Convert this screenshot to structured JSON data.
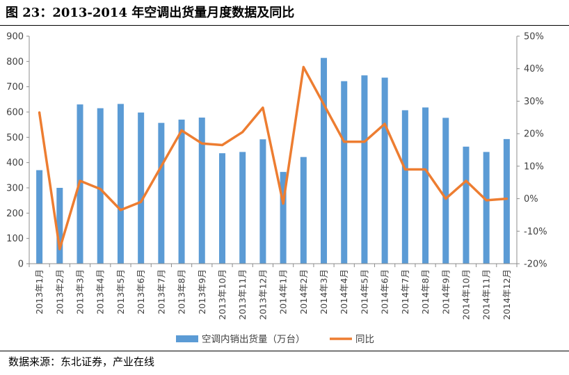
{
  "page": {
    "title": "图 23：2013-2014 年空调出货量月度数据及同比",
    "source": "数据来源：东北证券，产业在线"
  },
  "chart_data": {
    "type": "bar+line",
    "categories": [
      "2013年1月",
      "2013年2月",
      "2013年3月",
      "2013年4月",
      "2013年5月",
      "2013年6月",
      "2013年7月",
      "2013年8月",
      "2013年9月",
      "2013年10月",
      "2013年11月",
      "2013年12月",
      "2014年1月",
      "2014年2月",
      "2014年3月",
      "2014年4月",
      "2014年5月",
      "2014年6月",
      "2014年7月",
      "2014年8月",
      "2014年9月",
      "2014年10月",
      "2014年11月",
      "2014年12月"
    ],
    "series": [
      {
        "name": "空调内销出货量（万台）",
        "type": "bar",
        "axis": "left",
        "color": "#5b9bd5",
        "values": [
          370,
          300,
          630,
          615,
          632,
          598,
          557,
          570,
          578,
          437,
          442,
          492,
          363,
          422,
          814,
          722,
          745,
          736,
          607,
          618,
          577,
          463,
          442,
          493
        ]
      },
      {
        "name": "同比",
        "type": "line",
        "axis": "right",
        "color": "#ed7d31",
        "values": [
          26.5,
          -15.5,
          5.5,
          3.0,
          -3.5,
          -1.0,
          10.0,
          21.0,
          17.0,
          16.5,
          20.5,
          28.0,
          -1.5,
          40.5,
          29.0,
          17.5,
          17.5,
          23.0,
          9.0,
          9.0,
          0.0,
          5.5,
          -0.5,
          0.0
        ]
      }
    ],
    "y_left": {
      "min": 0,
      "max": 900,
      "ticks": [
        "0",
        "100",
        "200",
        "300",
        "400",
        "500",
        "600",
        "700",
        "800",
        "900"
      ]
    },
    "y_right": {
      "min": -20,
      "max": 50,
      "ticks": [
        "-20%",
        "-10%",
        "0%",
        "10%",
        "20%",
        "30%",
        "40%",
        "50%"
      ]
    },
    "grid": false,
    "legend_position": "bottom"
  }
}
